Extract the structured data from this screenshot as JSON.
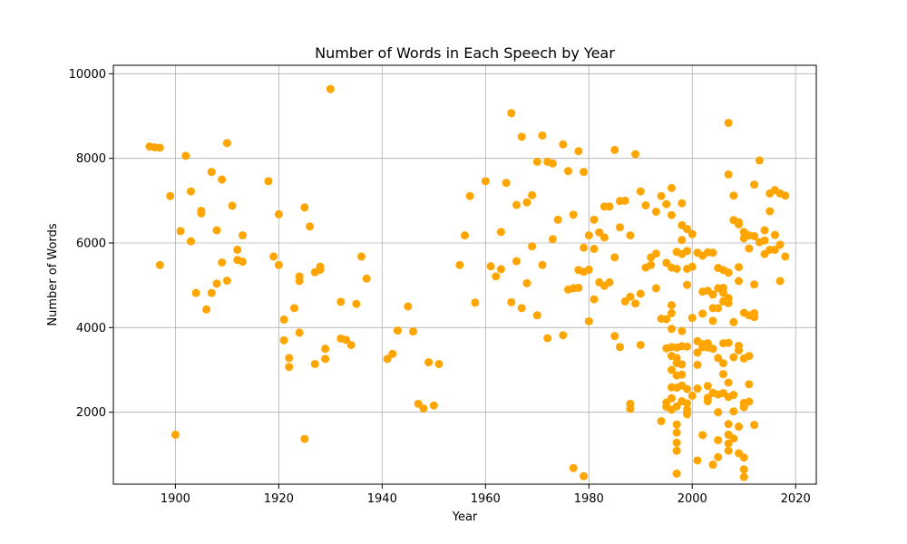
{
  "chart_data": {
    "type": "scatter",
    "title": "Number of Words in Each Speech by Year",
    "xlabel": "Year",
    "ylabel": "Number of Words",
    "xlim": [
      1888,
      2024
    ],
    "ylim": [
      300,
      10200
    ],
    "xticks": [
      1900,
      1920,
      1940,
      1960,
      1980,
      2000,
      2020
    ],
    "yticks": [
      2000,
      4000,
      6000,
      8000,
      10000
    ],
    "grid": true,
    "marker_color": "#FFA500",
    "series": [
      {
        "points": [
          [
            1895,
            8280
          ],
          [
            1896,
            8260
          ],
          [
            1897,
            8250
          ],
          [
            1897,
            5480
          ],
          [
            1899,
            7110
          ],
          [
            1900,
            1470
          ],
          [
            1901,
            6280
          ],
          [
            1902,
            8060
          ],
          [
            1903,
            7220
          ],
          [
            1903,
            6040
          ],
          [
            1904,
            4820
          ],
          [
            1905,
            6760
          ],
          [
            1905,
            6700
          ],
          [
            1906,
            4430
          ],
          [
            1907,
            7680
          ],
          [
            1907,
            4820
          ],
          [
            1908,
            6300
          ],
          [
            1908,
            5040
          ],
          [
            1909,
            7500
          ],
          [
            1909,
            5540
          ],
          [
            1910,
            8360
          ],
          [
            1910,
            5110
          ],
          [
            1911,
            6880
          ],
          [
            1912,
            5840
          ],
          [
            1912,
            5600
          ],
          [
            1913,
            6180
          ],
          [
            1913,
            5560
          ],
          [
            1918,
            7460
          ],
          [
            1919,
            5680
          ],
          [
            1920,
            6680
          ],
          [
            1920,
            5480
          ],
          [
            1921,
            4190
          ],
          [
            1921,
            3700
          ],
          [
            1922,
            3280
          ],
          [
            1922,
            3070
          ],
          [
            1923,
            4460
          ],
          [
            1924,
            5210
          ],
          [
            1924,
            5100
          ],
          [
            1924,
            3880
          ],
          [
            1925,
            6840
          ],
          [
            1925,
            1370
          ],
          [
            1926,
            6390
          ],
          [
            1927,
            5310
          ],
          [
            1927,
            3140
          ],
          [
            1928,
            5440
          ],
          [
            1928,
            5370
          ],
          [
            1929,
            3500
          ],
          [
            1929,
            3260
          ],
          [
            1930,
            9640
          ],
          [
            1932,
            4610
          ],
          [
            1932,
            3740
          ],
          [
            1933,
            3710
          ],
          [
            1934,
            3590
          ],
          [
            1935,
            4560
          ],
          [
            1936,
            5680
          ],
          [
            1937,
            5160
          ],
          [
            1941,
            3260
          ],
          [
            1942,
            3380
          ],
          [
            1943,
            3930
          ],
          [
            1945,
            4500
          ],
          [
            1946,
            3910
          ],
          [
            1947,
            2200
          ],
          [
            1948,
            2090
          ],
          [
            1949,
            3180
          ],
          [
            1950,
            2160
          ],
          [
            1951,
            3140
          ],
          [
            1955,
            5480
          ],
          [
            1956,
            6180
          ],
          [
            1957,
            7110
          ],
          [
            1958,
            4590
          ],
          [
            1960,
            7460
          ],
          [
            1961,
            5450
          ],
          [
            1962,
            5210
          ],
          [
            1963,
            6260
          ],
          [
            1963,
            5380
          ],
          [
            1964,
            7420
          ],
          [
            1965,
            9070
          ],
          [
            1965,
            4600
          ],
          [
            1966,
            6900
          ],
          [
            1966,
            5570
          ],
          [
            1967,
            8510
          ],
          [
            1967,
            4460
          ],
          [
            1968,
            6960
          ],
          [
            1968,
            5050
          ],
          [
            1969,
            7130
          ],
          [
            1969,
            5920
          ],
          [
            1970,
            7920
          ],
          [
            1970,
            4290
          ],
          [
            1971,
            8540
          ],
          [
            1971,
            5480
          ],
          [
            1972,
            7920
          ],
          [
            1972,
            3750
          ],
          [
            1973,
            7880
          ],
          [
            1973,
            6090
          ],
          [
            1974,
            6550
          ],
          [
            1975,
            8330
          ],
          [
            1975,
            3820
          ],
          [
            1976,
            7700
          ],
          [
            1976,
            4900
          ],
          [
            1977,
            6670
          ],
          [
            1977,
            4930
          ],
          [
            1977,
            680
          ],
          [
            1978,
            8170
          ],
          [
            1978,
            5360
          ],
          [
            1978,
            4940
          ],
          [
            1979,
            7680
          ],
          [
            1979,
            5890
          ],
          [
            1979,
            5320
          ],
          [
            1979,
            490
          ],
          [
            1980,
            6180
          ],
          [
            1980,
            5370
          ],
          [
            1980,
            4150
          ],
          [
            1981,
            6550
          ],
          [
            1981,
            5860
          ],
          [
            1981,
            4670
          ],
          [
            1982,
            6250
          ],
          [
            1982,
            5070
          ],
          [
            1983,
            6860
          ],
          [
            1983,
            6130
          ],
          [
            1983,
            4990
          ],
          [
            1984,
            6860
          ],
          [
            1984,
            5070
          ],
          [
            1985,
            8200
          ],
          [
            1985,
            5660
          ],
          [
            1985,
            3800
          ],
          [
            1986,
            6990
          ],
          [
            1986,
            6370
          ],
          [
            1986,
            3540
          ],
          [
            1987,
            7000
          ],
          [
            1987,
            4620
          ],
          [
            1988,
            6180
          ],
          [
            1988,
            4730
          ],
          [
            1988,
            2200
          ],
          [
            1988,
            2080
          ],
          [
            1989,
            8100
          ],
          [
            1989,
            4570
          ],
          [
            1990,
            7220
          ],
          [
            1990,
            4800
          ],
          [
            1990,
            3590
          ],
          [
            1991,
            6890
          ],
          [
            1991,
            5420
          ],
          [
            1992,
            5660
          ],
          [
            1992,
            5480
          ],
          [
            1993,
            6740
          ],
          [
            1993,
            5750
          ],
          [
            1993,
            4930
          ],
          [
            1994,
            7110
          ],
          [
            1994,
            4210
          ],
          [
            1994,
            1790
          ],
          [
            1995,
            6920
          ],
          [
            1995,
            5530
          ],
          [
            1995,
            4200
          ],
          [
            1995,
            3510
          ],
          [
            1995,
            2230
          ],
          [
            1995,
            2130
          ],
          [
            1996,
            7300
          ],
          [
            1996,
            6660
          ],
          [
            1996,
            5420
          ],
          [
            1996,
            4530
          ],
          [
            1996,
            4340
          ],
          [
            1996,
            3970
          ],
          [
            1996,
            3540
          ],
          [
            1996,
            3330
          ],
          [
            1996,
            3000
          ],
          [
            1996,
            2590
          ],
          [
            1996,
            2330
          ],
          [
            1996,
            2060
          ],
          [
            1997,
            5790
          ],
          [
            1997,
            5390
          ],
          [
            1997,
            3530
          ],
          [
            1997,
            3280
          ],
          [
            1997,
            3160
          ],
          [
            1997,
            2870
          ],
          [
            1997,
            2580
          ],
          [
            1997,
            2140
          ],
          [
            1997,
            1710
          ],
          [
            1997,
            1520
          ],
          [
            1997,
            1280
          ],
          [
            1997,
            1090
          ],
          [
            1997,
            550
          ],
          [
            1998,
            6940
          ],
          [
            1998,
            6420
          ],
          [
            1998,
            6070
          ],
          [
            1998,
            5740
          ],
          [
            1998,
            3920
          ],
          [
            1998,
            3560
          ],
          [
            1998,
            3130
          ],
          [
            1998,
            2890
          ],
          [
            1998,
            2630
          ],
          [
            1998,
            2260
          ],
          [
            1999,
            6330
          ],
          [
            1999,
            5810
          ],
          [
            1999,
            5390
          ],
          [
            1999,
            5010
          ],
          [
            1999,
            3550
          ],
          [
            1999,
            2550
          ],
          [
            1999,
            2210
          ],
          [
            1999,
            2060
          ],
          [
            1999,
            1950
          ],
          [
            2000,
            6210
          ],
          [
            2000,
            5440
          ],
          [
            2000,
            4230
          ],
          [
            2000,
            2390
          ],
          [
            2001,
            5770
          ],
          [
            2001,
            3680
          ],
          [
            2001,
            3410
          ],
          [
            2001,
            3120
          ],
          [
            2001,
            2560
          ],
          [
            2001,
            860
          ],
          [
            2002,
            5700
          ],
          [
            2002,
            4850
          ],
          [
            2002,
            4330
          ],
          [
            2002,
            3610
          ],
          [
            2002,
            3540
          ],
          [
            2002,
            1460
          ],
          [
            2003,
            5780
          ],
          [
            2003,
            4870
          ],
          [
            2003,
            3630
          ],
          [
            2003,
            3530
          ],
          [
            2003,
            2620
          ],
          [
            2003,
            2340
          ],
          [
            2003,
            2260
          ],
          [
            2004,
            5770
          ],
          [
            2004,
            4780
          ],
          [
            2004,
            4460
          ],
          [
            2004,
            4160
          ],
          [
            2004,
            3500
          ],
          [
            2004,
            2460
          ],
          [
            2004,
            760
          ],
          [
            2005,
            5410
          ],
          [
            2005,
            4930
          ],
          [
            2005,
            4460
          ],
          [
            2005,
            3280
          ],
          [
            2005,
            2420
          ],
          [
            2005,
            2000
          ],
          [
            2005,
            1340
          ],
          [
            2005,
            940
          ],
          [
            2006,
            5360
          ],
          [
            2006,
            4940
          ],
          [
            2006,
            4820
          ],
          [
            2006,
            4620
          ],
          [
            2006,
            3630
          ],
          [
            2006,
            3160
          ],
          [
            2006,
            2900
          ],
          [
            2006,
            2450
          ],
          [
            2007,
            8840
          ],
          [
            2007,
            7620
          ],
          [
            2007,
            5300
          ],
          [
            2007,
            4700
          ],
          [
            2007,
            4580
          ],
          [
            2007,
            3640
          ],
          [
            2007,
            2700
          ],
          [
            2007,
            2360
          ],
          [
            2007,
            1720
          ],
          [
            2007,
            1470
          ],
          [
            2007,
            1260
          ],
          [
            2007,
            1090
          ],
          [
            2008,
            7120
          ],
          [
            2008,
            6540
          ],
          [
            2008,
            4130
          ],
          [
            2008,
            3300
          ],
          [
            2008,
            2410
          ],
          [
            2008,
            2020
          ],
          [
            2008,
            1380
          ],
          [
            2009,
            6490
          ],
          [
            2009,
            6440
          ],
          [
            2009,
            5430
          ],
          [
            2009,
            5100
          ],
          [
            2009,
            3570
          ],
          [
            2009,
            3460
          ],
          [
            2009,
            1660
          ],
          [
            2009,
            1030
          ],
          [
            2010,
            6260
          ],
          [
            2010,
            6110
          ],
          [
            2010,
            4350
          ],
          [
            2010,
            3270
          ],
          [
            2010,
            2220
          ],
          [
            2010,
            2120
          ],
          [
            2010,
            930
          ],
          [
            2010,
            650
          ],
          [
            2010,
            470
          ],
          [
            2011,
            6180
          ],
          [
            2011,
            5870
          ],
          [
            2011,
            4290
          ],
          [
            2011,
            3330
          ],
          [
            2011,
            2660
          ],
          [
            2011,
            2250
          ],
          [
            2012,
            7380
          ],
          [
            2012,
            6160
          ],
          [
            2012,
            5020
          ],
          [
            2012,
            4340
          ],
          [
            2012,
            4250
          ],
          [
            2012,
            1700
          ],
          [
            2013,
            7950
          ],
          [
            2013,
            6020
          ],
          [
            2014,
            6300
          ],
          [
            2014,
            6060
          ],
          [
            2014,
            5740
          ],
          [
            2015,
            7170
          ],
          [
            2015,
            6750
          ],
          [
            2015,
            5840
          ],
          [
            2016,
            7250
          ],
          [
            2016,
            6190
          ],
          [
            2016,
            5840
          ],
          [
            2017,
            7170
          ],
          [
            2017,
            5960
          ],
          [
            2017,
            5100
          ],
          [
            2018,
            7120
          ],
          [
            2018,
            5680
          ]
        ]
      }
    ]
  }
}
